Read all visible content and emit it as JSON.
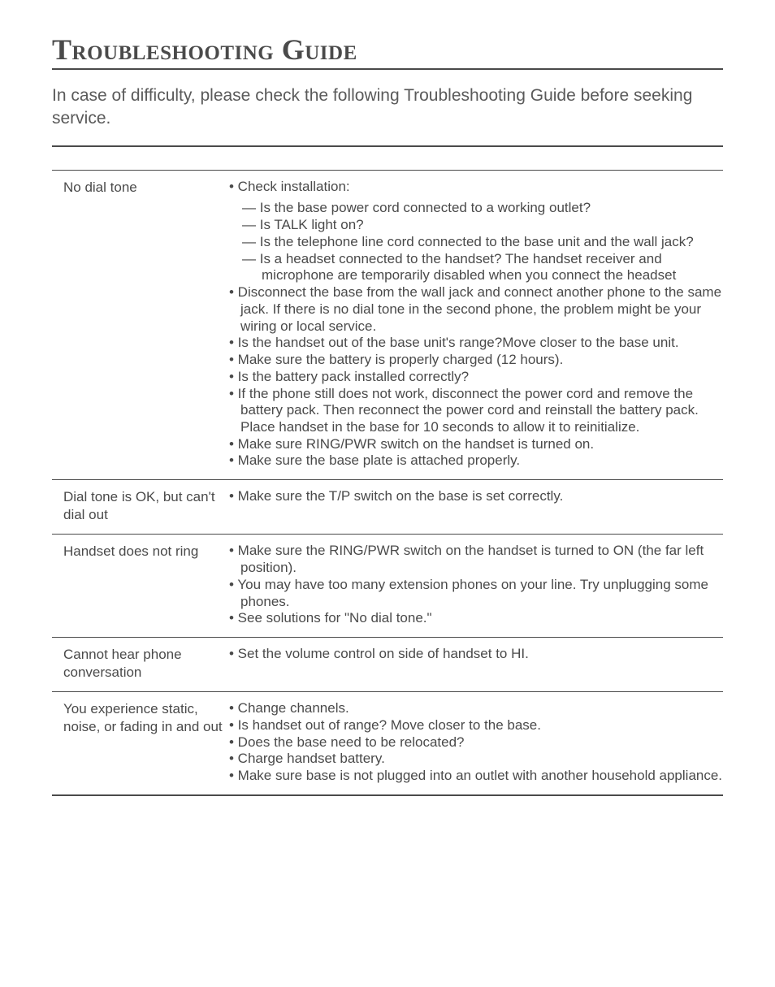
{
  "title": "Troubleshooting Guide",
  "intro": "In case of difficulty, please check the following Troubleshooting Guide before seeking service.",
  "sections": [
    {
      "problem": "No dial tone",
      "lead": "• Check installation:",
      "sub": [
        "— Is the base power cord connected to a working outlet?",
        "— Is TALK light on?",
        "— Is the telephone line cord connected to the base unit and the wall jack?",
        "— Is a headset connected to the handset? The handset receiver and microphone are temporarily disabled when you connect the headset"
      ],
      "bullets": [
        "• Disconnect the base from the wall jack and connect another phone to the same jack. If there is no dial tone in the second phone, the problem might be your wiring or local service.",
        "• Is the handset out of the base unit's range?Move closer to the base unit.",
        "• Make sure the battery is properly charged (12 hours).",
        "• Is the battery pack installed correctly?",
        "• If the phone still does not work, disconnect the power cord and remove the battery pack. Then reconnect the power cord and reinstall the battery pack. Place handset in the base for 10 seconds to allow it to reinitialize.",
        "• Make sure RING/PWR switch on the handset is turned on.",
        "• Make sure the base plate is attached properly."
      ]
    },
    {
      "problem": "Dial tone is OK, but can't dial out",
      "bullets": [
        "• Make sure the T/P switch on the base is set correctly."
      ]
    },
    {
      "problem": "Handset does not ring",
      "bullets": [
        "• Make sure the RING/PWR switch on the handset is turned to ON (the far left position).",
        "• You may have too many extension phones on your line. Try unplugging some phones.",
        "• See solutions for \"No dial tone.\""
      ]
    },
    {
      "problem": "Cannot hear phone conversation",
      "bullets": [
        "• Set the volume control on side of handset to HI."
      ]
    },
    {
      "problem": "You experience static, noise, or fading in and out",
      "bullets": [
        "• Change channels.",
        "• Is handset out of range? Move closer to the base.",
        "• Does the base need to be relocated?",
        "• Charge handset battery.",
        "• Make sure base is not plugged into an outlet with another household appliance."
      ]
    }
  ]
}
